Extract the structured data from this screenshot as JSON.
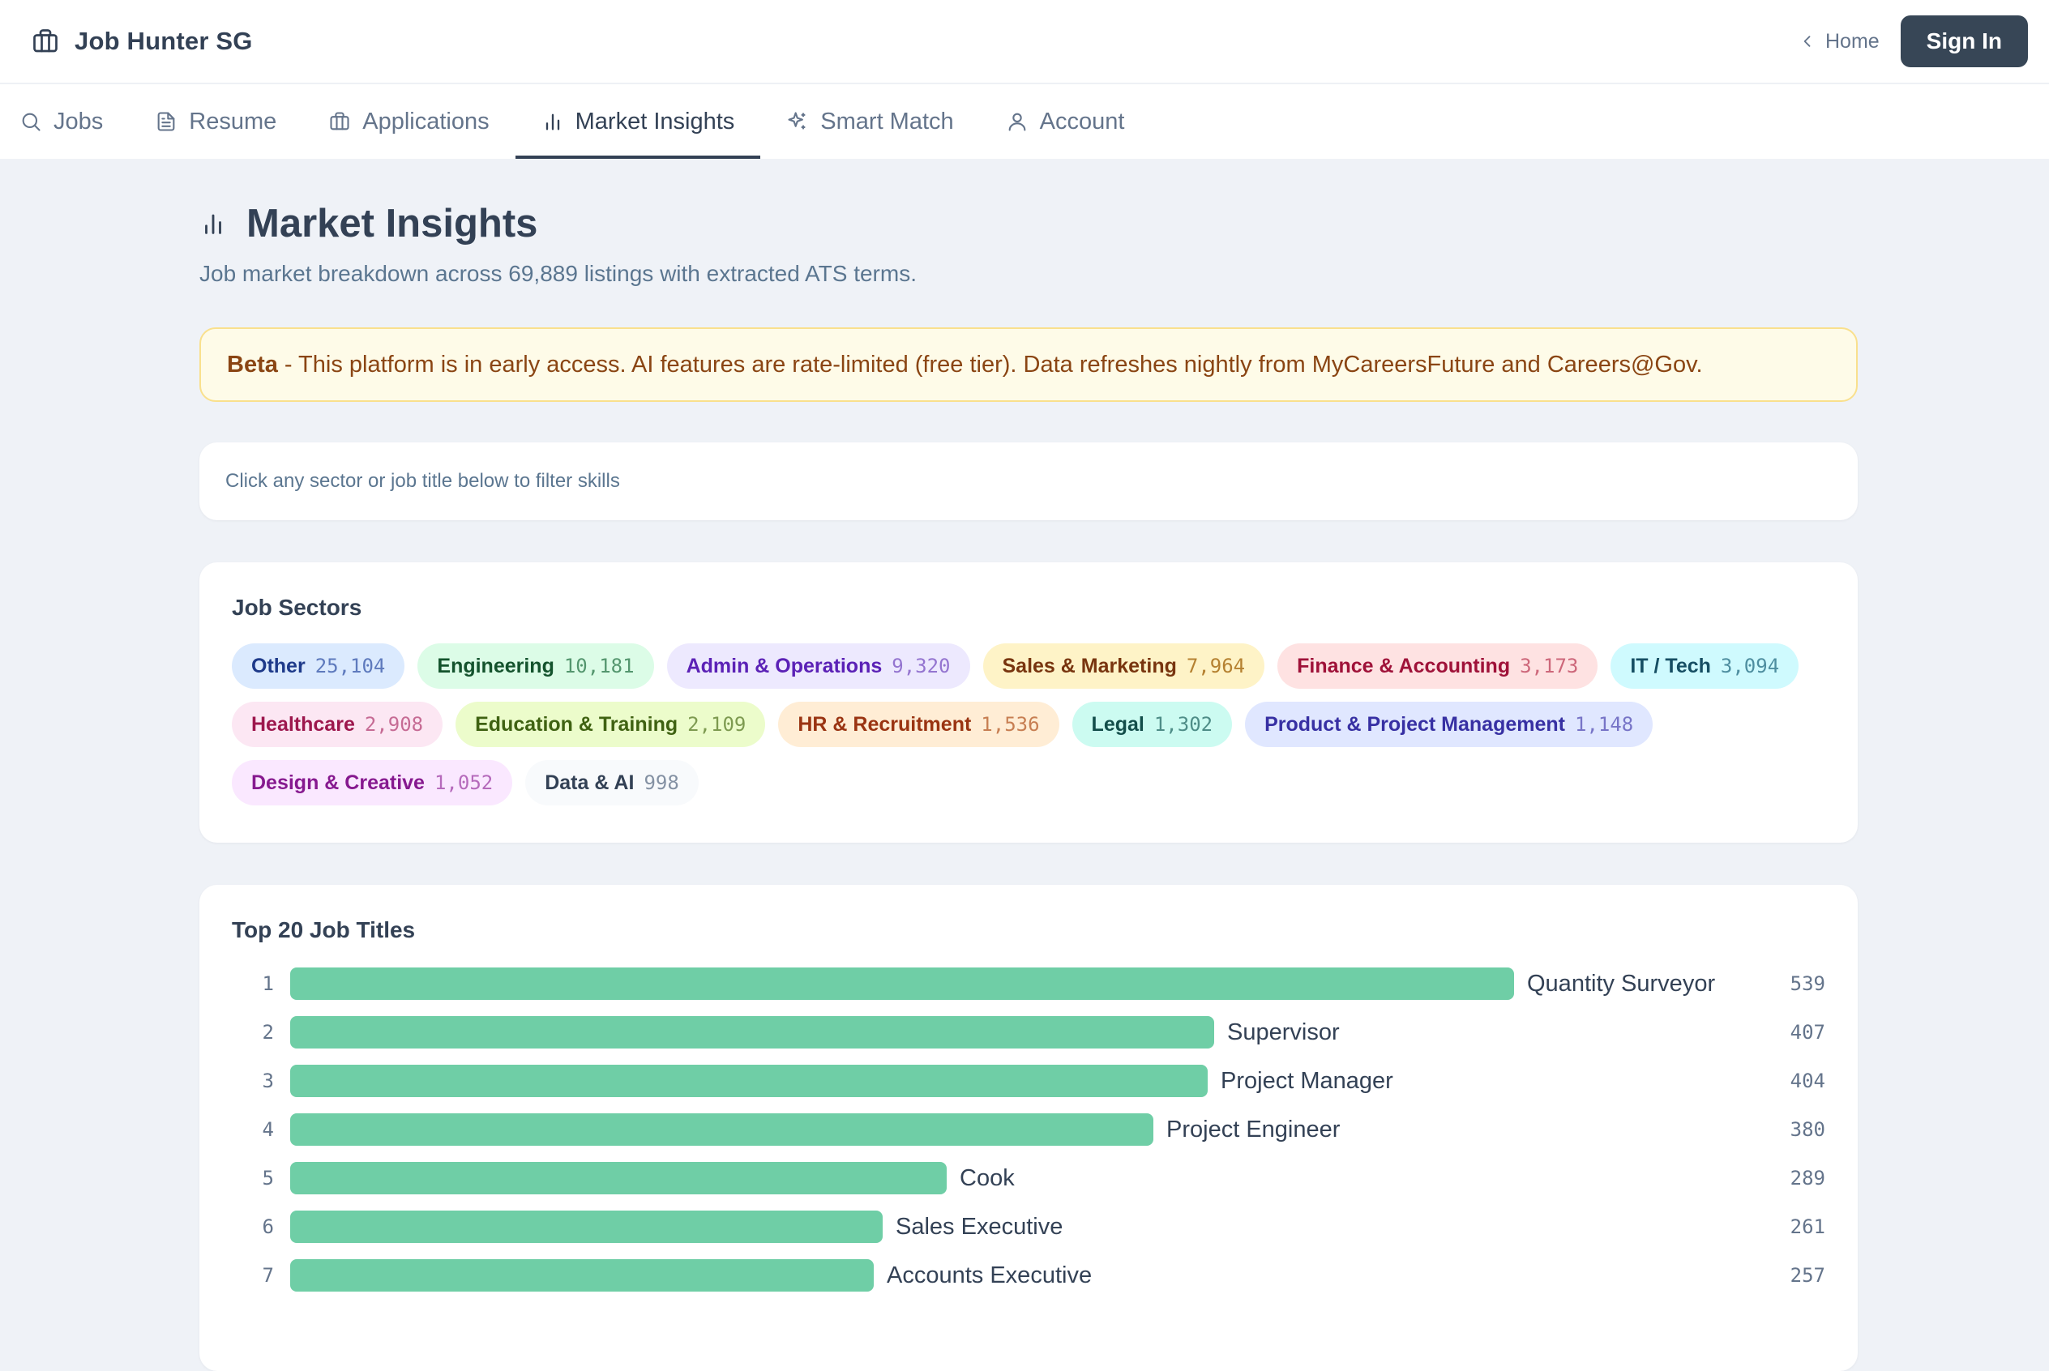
{
  "header": {
    "brand_icon": "briefcase-icon",
    "brand_title": "Job Hunter SG",
    "home_label": "Home",
    "signin_label": "Sign In"
  },
  "tabs": [
    {
      "label": "Jobs",
      "icon": "search-icon",
      "active": false
    },
    {
      "label": "Resume",
      "icon": "document-icon",
      "active": false
    },
    {
      "label": "Applications",
      "icon": "briefcase-icon",
      "active": false
    },
    {
      "label": "Market Insights",
      "icon": "bar-chart-icon",
      "active": true
    },
    {
      "label": "Smart Match",
      "icon": "sparkles-icon",
      "active": false
    },
    {
      "label": "Account",
      "icon": "user-icon",
      "active": false
    }
  ],
  "page": {
    "title": "Market Insights",
    "subtitle": "Job market breakdown across 69,889 listings with extracted ATS terms."
  },
  "beta": {
    "tag": "Beta",
    "message": "- This platform is in early access. AI features are rate-limited (free tier). Data refreshes nightly from MyCareersFuture and Careers@Gov."
  },
  "filter_hint": "Click any sector or job title below to filter skills",
  "sectors": {
    "title": "Job Sectors",
    "items": [
      {
        "name": "Other",
        "count": "25,104",
        "bg": "#dbeafe",
        "fg": "#1e3a8a",
        "cfg": "#3b5bab"
      },
      {
        "name": "Engineering",
        "count": "10,181",
        "bg": "#dcfce7",
        "fg": "#14532d",
        "cfg": "#2f7a4d"
      },
      {
        "name": "Admin & Operations",
        "count": "9,320",
        "bg": "#ede9fe",
        "fg": "#5b21b6",
        "cfg": "#7c55c4"
      },
      {
        "name": "Sales & Marketing",
        "count": "7,964",
        "bg": "#fef3c7",
        "fg": "#78350f",
        "cfg": "#a16207"
      },
      {
        "name": "Finance & Accounting",
        "count": "3,173",
        "bg": "#fee2e2",
        "fg": "#9f1239",
        "cfg": "#c0455e"
      },
      {
        "name": "IT / Tech",
        "count": "3,094",
        "bg": "#cffafe",
        "fg": "#164e63",
        "cfg": "#2b7186"
      },
      {
        "name": "Healthcare",
        "count": "2,908",
        "bg": "#fce7f3",
        "fg": "#9d174d",
        "cfg": "#b8497a"
      },
      {
        "name": "Education & Training",
        "count": "2,109",
        "bg": "#ecfccb",
        "fg": "#3f6212",
        "cfg": "#5e7f2e"
      },
      {
        "name": "HR & Recruitment",
        "count": "1,536",
        "bg": "#ffedd5",
        "fg": "#9a3412",
        "cfg": "#b8602e"
      },
      {
        "name": "Legal",
        "count": "1,302",
        "bg": "#ccfbf1",
        "fg": "#134e4a",
        "cfg": "#2b6f6a"
      },
      {
        "name": "Product & Project Management",
        "count": "1,148",
        "bg": "#e0e7ff",
        "fg": "#3730a3",
        "cfg": "#5a55b8"
      },
      {
        "name": "Design & Creative",
        "count": "1,052",
        "bg": "#fae8ff",
        "fg": "#86198f",
        "cfg": "#a247a9"
      },
      {
        "name": "Data & AI",
        "count": "998",
        "bg": "#f8fafc",
        "fg": "#334155",
        "cfg": "#64748b"
      }
    ]
  },
  "top_titles": {
    "title": "Top 20 Job Titles",
    "bar_color": "#6fcea6",
    "max_value": 539,
    "items": [
      {
        "rank": "1",
        "title": "Quantity Surveyor",
        "value": 539,
        "count": "539"
      },
      {
        "rank": "2",
        "title": "Supervisor",
        "value": 407,
        "count": "407"
      },
      {
        "rank": "3",
        "title": "Project Manager",
        "value": 404,
        "count": "404"
      },
      {
        "rank": "4",
        "title": "Project Engineer",
        "value": 380,
        "count": "380"
      },
      {
        "rank": "5",
        "title": "Cook",
        "value": 289,
        "count": "289"
      },
      {
        "rank": "6",
        "title": "Sales Executive",
        "value": 261,
        "count": "261"
      },
      {
        "rank": "7",
        "title": "Accounts Executive",
        "value": 257,
        "count": "257"
      }
    ]
  }
}
